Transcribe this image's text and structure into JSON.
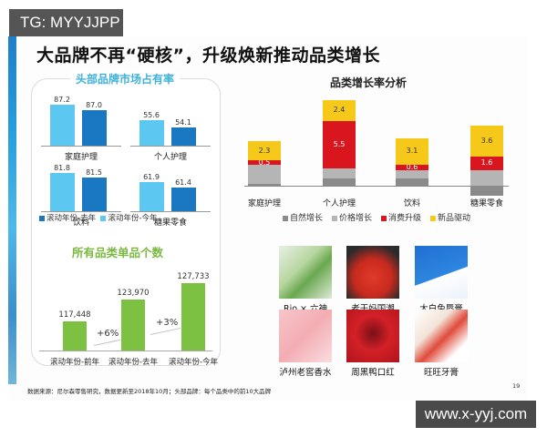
{
  "watermarks": {
    "top": "TG: MYYJJPP",
    "bottom": "www.x-yyj.com"
  },
  "main_title": "大品牌不再“硬核”，升级焕新推动品类增长",
  "left_panel": {
    "share_title": "头部品牌市场占有率",
    "count_title": "所有品类单品个数",
    "share_legend": [
      "滚动年份-去年",
      "滚动年份-今年"
    ]
  },
  "right_panel": {
    "title": "品类增长率分析",
    "products": [
      {
        "label": "Rio × 六神"
      },
      {
        "label": "老干妈国潮"
      },
      {
        "label": "大白兔唇膏"
      },
      {
        "label": "泸州老窖香水"
      },
      {
        "label": "周黑鸭口红"
      },
      {
        "label": "旺旺牙膏"
      }
    ]
  },
  "footnote": "数据来源：尼尔森零售研究，数据更新至2018年10月；头部品牌：每个品类中的前10大品牌",
  "page_number": "19",
  "colors": {
    "share_last_year": "#5cc8f2",
    "share_this_year": "#1a78c2",
    "count_bar": "#7dc142",
    "natural": "#8a8a8a",
    "price": "#b5b5b5",
    "upgrade": "#d9161e",
    "new_product": "#f6c81a"
  },
  "chart_data": [
    {
      "type": "bar",
      "title": "头部品牌市场占有率",
      "categories": [
        "家庭护理",
        "个人护理",
        "饮料",
        "糖果零食"
      ],
      "series": [
        {
          "name": "滚动年份-去年",
          "values": [
            87.2,
            55.6,
            81.8,
            61.9
          ]
        },
        {
          "name": "滚动年份-今年",
          "values": [
            87.0,
            54.1,
            81.5,
            61.4
          ]
        }
      ],
      "legend_position": "bottom"
    },
    {
      "type": "bar",
      "title": "所有品类单品个数",
      "categories": [
        "滚动年份-前年",
        "滚动年份-去年",
        "滚动年份-今年"
      ],
      "values": [
        117448,
        123970,
        127733
      ],
      "value_labels": [
        "117,448",
        "123,970",
        "127,733"
      ],
      "annotations": [
        "+6%",
        "+3%"
      ]
    },
    {
      "type": "bar",
      "stacked": true,
      "title": "品类增长率分析",
      "categories": [
        "家庭护理",
        "个人护理",
        "饮料",
        "糖果零食"
      ],
      "series": [
        {
          "name": "自然增长",
          "values": [
            0.2,
            0.8,
            0.8,
            -1.2
          ]
        },
        {
          "name": "价格增长",
          "values": [
            2.2,
            1.2,
            1.0,
            1.8
          ]
        },
        {
          "name": "消费升级",
          "values": [
            0.5,
            5.5,
            0.6,
            1.6
          ]
        },
        {
          "name": "新品驱动",
          "values": [
            2.3,
            2.4,
            3.1,
            3.6
          ]
        }
      ],
      "data_labels": {
        "消费升级": [
          "0.5",
          "5.5",
          "0.6",
          "1.6"
        ],
        "新品驱动": [
          "2.3",
          "2.4",
          "3.1",
          "3.6"
        ]
      },
      "legend_position": "bottom"
    }
  ]
}
